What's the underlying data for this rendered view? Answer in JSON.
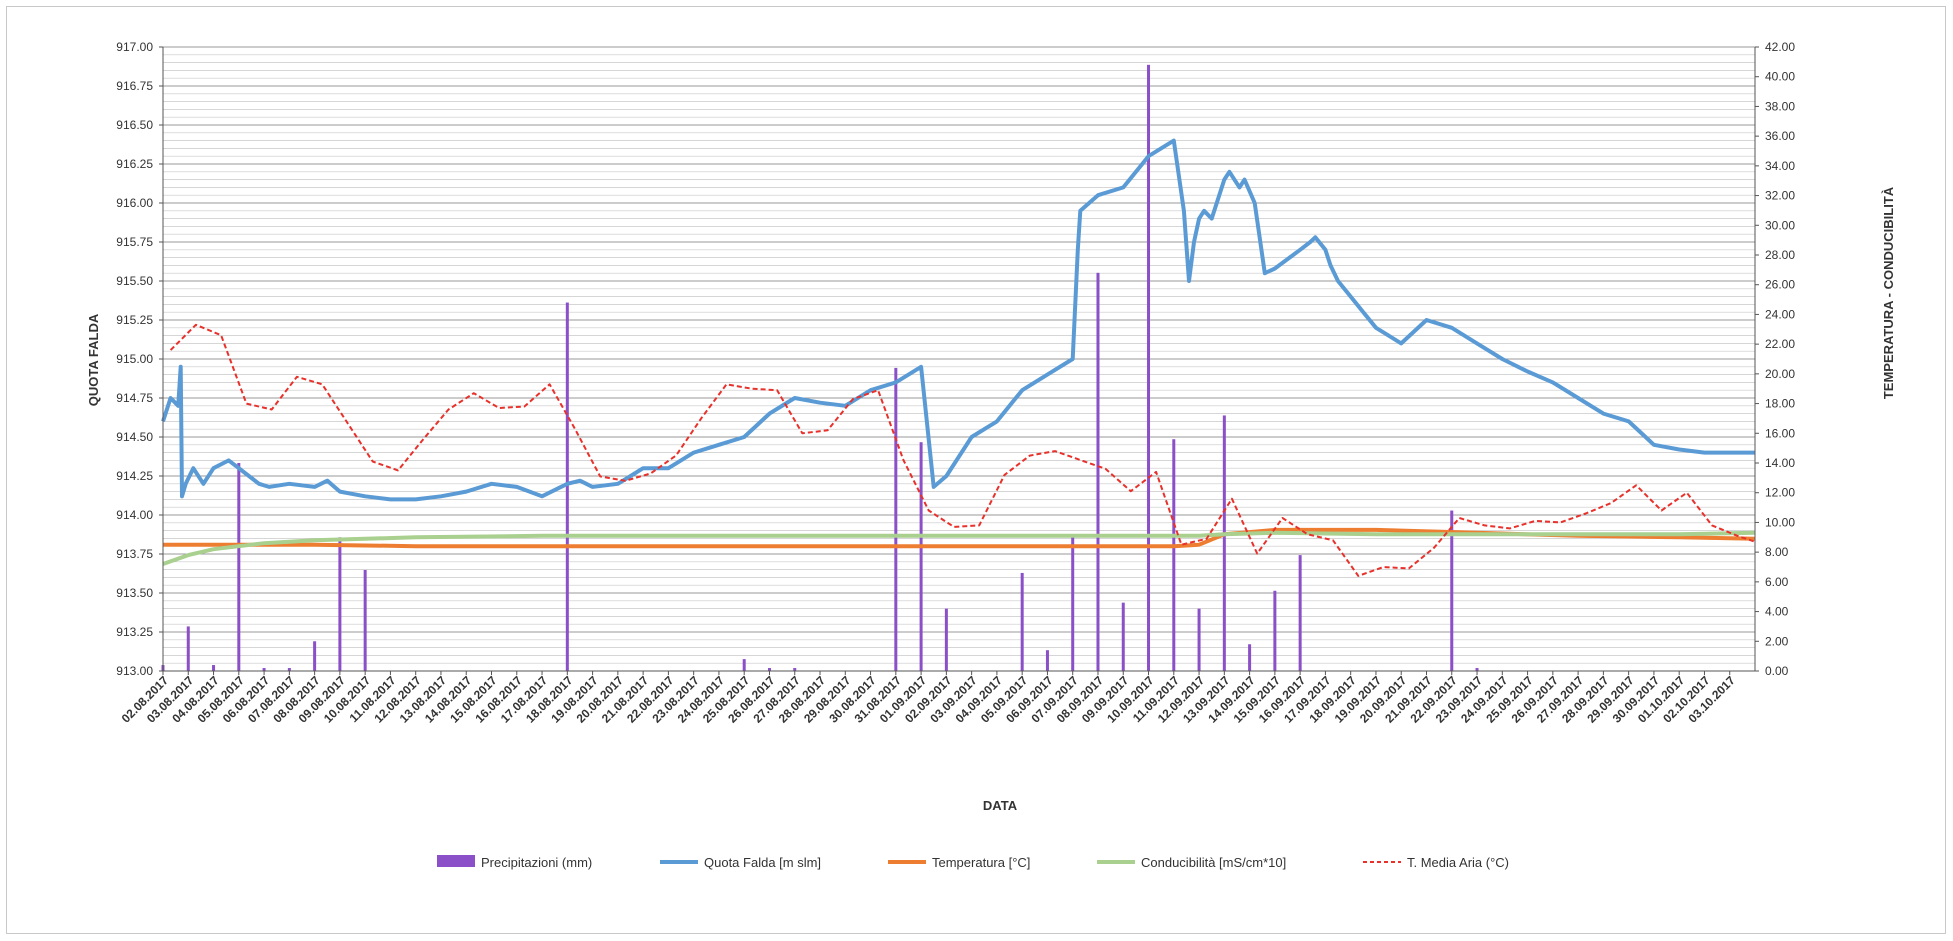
{
  "chart_data": {
    "type": "line",
    "title": "",
    "xlabel": "DATA",
    "ylabel_left": "QUOTA FALDA",
    "ylabel_right": "TEMPERATURA - CONDUCIBILITÀ",
    "ylim_left": [
      913.0,
      917.0
    ],
    "ylim_right": [
      0.0,
      42.0
    ],
    "yticks_left": [
      "917.00",
      "916.75",
      "916.50",
      "916.25",
      "916.00",
      "915.75",
      "915.50",
      "915.25",
      "915.00",
      "914.75",
      "914.50",
      "914.25",
      "914.00",
      "913.75",
      "913.50",
      "913.25",
      "913.00"
    ],
    "yticks_right": [
      "42.00",
      "40.00",
      "38.00",
      "36.00",
      "34.00",
      "32.00",
      "30.00",
      "28.00",
      "26.00",
      "24.00",
      "22.00",
      "20.00",
      "18.00",
      "16.00",
      "14.00",
      "12.00",
      "10.00",
      "8.00",
      "6.00",
      "4.00",
      "2.00",
      "0.00"
    ],
    "grid": true,
    "legend_position": "bottom",
    "categories": [
      "02.08.2017",
      "03.08.2017",
      "04.08.2017",
      "05.08.2017",
      "06.08.2017",
      "07.08.2017",
      "08.08.2017",
      "09.08.2017",
      "10.08.2017",
      "11.08.2017",
      "12.08.2017",
      "13.08.2017",
      "14.08.2017",
      "15.08.2017",
      "16.08.2017",
      "17.08.2017",
      "18.08.2017",
      "19.08.2017",
      "20.08.2017",
      "21.08.2017",
      "22.08.2017",
      "23.08.2017",
      "24.08.2017",
      "25.08.2017",
      "26.08.2017",
      "27.08.2017",
      "28.08.2017",
      "29.08.2017",
      "30.08.2017",
      "31.08.2017",
      "01.09.2017",
      "02.09.2017",
      "03.09.2017",
      "04.09.2017",
      "05.09.2017",
      "06.09.2017",
      "07.09.2017",
      "08.09.2017",
      "09.09.2017",
      "10.09.2017",
      "11.09.2017",
      "12.09.2017",
      "13.09.2017",
      "14.09.2017",
      "15.09.2017",
      "16.09.2017",
      "17.09.2017",
      "18.09.2017",
      "19.09.2017",
      "20.09.2017",
      "21.09.2017",
      "22.09.2017",
      "23.09.2017",
      "24.09.2017",
      "25.09.2017",
      "26.09.2017",
      "27.09.2017",
      "28.09.2017",
      "29.09.2017",
      "30.09.2017",
      "01.10.2017",
      "02.10.2017",
      "03.10.2017"
    ],
    "series": [
      {
        "name": "Precipitazioni (mm)",
        "axis": "right",
        "kind": "bar",
        "color": "#8b4fc8",
        "values": [
          0.4,
          3.0,
          0.4,
          14.0,
          0.2,
          0.2,
          2.0,
          9.0,
          6.8,
          0,
          0,
          0,
          0,
          0,
          0,
          0,
          24.8,
          0,
          0,
          0,
          0,
          0,
          0,
          0.8,
          0.2,
          0.2,
          0,
          0,
          0,
          20.4,
          15.4,
          4.2,
          0,
          0,
          6.6,
          1.4,
          9.0,
          26.8,
          4.6,
          40.8,
          15.6,
          4.2,
          17.2,
          1.8,
          5.4,
          7.8,
          0,
          0,
          0,
          0,
          0,
          10.8,
          0.2,
          0,
          0,
          0,
          0,
          0,
          0,
          0,
          0,
          0,
          0
        ]
      },
      {
        "name": "Quota Falda [m slm]",
        "axis": "left",
        "kind": "line",
        "color": "#5b9bd5",
        "x": [
          0,
          0.3,
          0.6,
          0.7,
          0.75,
          0.9,
          1.2,
          1.6,
          2.0,
          2.6,
          3.0,
          3.4,
          3.8,
          4.2,
          5,
          6,
          6.5,
          7,
          8,
          9,
          9.5,
          10,
          11,
          12,
          13,
          14,
          15,
          16,
          16.5,
          17,
          18,
          19,
          20,
          21,
          22,
          23,
          24,
          25,
          26,
          27,
          28,
          29,
          30,
          30.5,
          31,
          32,
          33,
          34,
          35,
          36,
          36.2,
          36.3,
          37,
          38,
          39,
          40,
          40.4,
          40.6,
          40.8,
          41,
          41.2,
          41.5,
          42,
          42.2,
          42.6,
          42.8,
          43.2,
          43.6,
          44,
          45,
          45.4,
          45.6,
          46,
          46.2,
          46.5,
          47,
          47.5,
          48,
          48.5,
          49,
          50,
          51,
          52,
          53,
          54,
          55,
          56,
          57,
          58,
          59,
          60,
          61,
          62,
          63
        ],
        "values": [
          914.6,
          914.75,
          914.7,
          914.95,
          914.12,
          914.2,
          914.3,
          914.2,
          914.3,
          914.35,
          914.3,
          914.25,
          914.2,
          914.18,
          914.2,
          914.18,
          914.22,
          914.15,
          914.12,
          914.1,
          914.1,
          914.1,
          914.12,
          914.15,
          914.2,
          914.18,
          914.12,
          914.2,
          914.22,
          914.18,
          914.2,
          914.3,
          914.3,
          914.4,
          914.45,
          914.5,
          914.65,
          914.75,
          914.72,
          914.7,
          914.8,
          914.85,
          914.95,
          914.18,
          914.25,
          914.5,
          914.6,
          914.8,
          914.9,
          915.0,
          915.7,
          915.95,
          916.05,
          916.1,
          916.3,
          916.4,
          915.95,
          915.5,
          915.75,
          915.9,
          915.95,
          915.9,
          916.15,
          916.2,
          916.1,
          916.15,
          916.0,
          915.55,
          915.58,
          915.7,
          915.75,
          915.78,
          915.7,
          915.6,
          915.5,
          915.4,
          915.3,
          915.2,
          915.15,
          915.1,
          915.25,
          915.2,
          915.1,
          915.0,
          914.92,
          914.85,
          914.75,
          914.65,
          914.6,
          914.45,
          914.42,
          914.4,
          914.4,
          914.4
        ]
      },
      {
        "name": "Temperatura [°C]",
        "axis": "right",
        "kind": "line",
        "color": "#ed7d31",
        "x": [
          0,
          2,
          6,
          10,
          20,
          30,
          40,
          41,
          42,
          44,
          48,
          52,
          56,
          60,
          63
        ],
        "values": [
          8.5,
          8.5,
          8.5,
          8.4,
          8.4,
          8.4,
          8.4,
          8.5,
          9.2,
          9.5,
          9.5,
          9.3,
          9.1,
          9.0,
          8.9
        ]
      },
      {
        "name": "Conducibilità [mS/cm*10]",
        "axis": "right",
        "kind": "line",
        "color": "#a9d08e",
        "x": [
          0,
          1,
          2,
          3,
          4,
          5,
          6,
          8,
          10,
          15,
          20,
          30,
          40,
          41,
          42,
          44,
          48,
          52,
          56,
          60,
          63
        ],
        "values": [
          7.2,
          7.8,
          8.2,
          8.4,
          8.6,
          8.7,
          8.8,
          8.9,
          9.0,
          9.1,
          9.1,
          9.1,
          9.1,
          9.1,
          9.2,
          9.3,
          9.2,
          9.2,
          9.2,
          9.2,
          9.3
        ]
      },
      {
        "name": "T. Media Aria (°C)",
        "axis": "right",
        "kind": "line",
        "color": "#e8312b",
        "x": [
          0.3,
          1.3,
          2.3,
          3.3,
          4.3,
          5.3,
          6.3,
          8.3,
          9.3,
          10.3,
          11.3,
          12.3,
          13.3,
          14.3,
          15.3,
          16.3,
          17.3,
          18.3,
          19.3,
          20.3,
          21.3,
          22.3,
          23.3,
          24.3,
          25.3,
          26.3,
          27.3,
          28.3,
          29.3,
          30.3,
          31.3,
          32.3,
          33.3,
          34.3,
          35.3,
          36.3,
          37.3,
          38.3,
          39.3,
          40.3,
          41.3,
          42.3,
          43.3,
          44.3,
          45.3,
          46.3,
          47.3,
          48.3,
          49.3,
          50.3,
          51.3,
          52.3,
          53.3,
          54.3,
          55.3,
          56.3,
          57.3,
          58.3,
          59.3,
          60.3,
          61.3,
          62.3,
          63.0
        ],
        "values": [
          21.6,
          23.3,
          22.6,
          18.0,
          17.6,
          19.8,
          19.3,
          14.1,
          13.5,
          15.6,
          17.6,
          18.7,
          17.7,
          17.8,
          19.3,
          16.3,
          13.1,
          12.8,
          13.3,
          14.5,
          17.0,
          19.3,
          19.0,
          18.9,
          16.0,
          16.2,
          18.3,
          18.9,
          14.2,
          10.8,
          9.7,
          9.8,
          13.2,
          14.5,
          14.8,
          14.2,
          13.6,
          12.1,
          13.4,
          8.5,
          8.9,
          11.6,
          7.9,
          10.3,
          9.2,
          8.8,
          6.4,
          7.0,
          6.9,
          8.3,
          10.3,
          9.8,
          9.6,
          10.1,
          10.0,
          10.6,
          11.3,
          12.5,
          10.8,
          12.0,
          9.8,
          9.1,
          8.7
        ]
      }
    ]
  }
}
